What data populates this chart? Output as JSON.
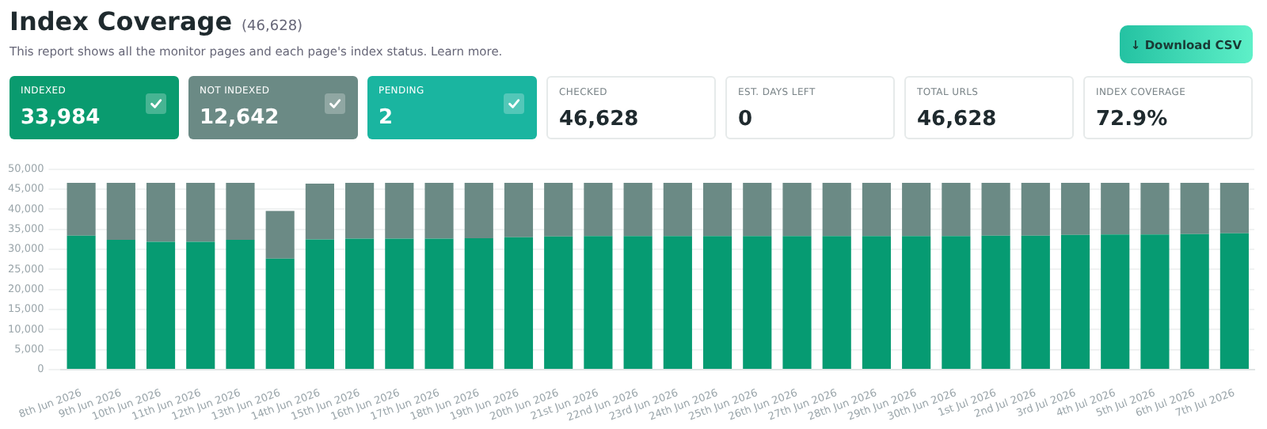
{
  "chart_data": {
    "type": "bar",
    "title": "Index Coverage",
    "subtitle": "This report shows all the monitor pages and each page's index status. Learn more.",
    "annotations": [
      "(46,628)",
      "INDEXED",
      "33,984",
      "NOT INDEXED",
      "12,642",
      "PENDING",
      "2",
      "CHECKED",
      "46,628",
      "EST. DAYS LEFT",
      "0",
      "TOTAL URLS",
      "46,628",
      "INDEX COVERAGE",
      "72.9%",
      "↓ Download CSV"
    ],
    "categories": [
      "8th Jun 2026",
      "9th Jun 2026",
      "10th Jun 2026",
      "11th Jun 2026",
      "12th Jun 2026",
      "13th Jun 2026",
      "14th Jun 2026",
      "15th Jun 2026",
      "16th Jun 2026",
      "17th Jun 2026",
      "18th Jun 2026",
      "19th Jun 2026",
      "20th Jun 2026",
      "21st Jun 2026",
      "22nd Jun 2026",
      "23rd Jun 2026",
      "24th Jun 2026",
      "25th Jun 2026",
      "26th Jun 2026",
      "27th Jun 2026",
      "28th Jun 2026",
      "29th Jun 2026",
      "30th Jun 2026",
      "1st Jul 2026",
      "2nd Jul 2026",
      "3rd Jul 2026",
      "4th Jul 2026",
      "5th Jul 2026",
      "6th Jul 2026",
      "7th Jul 2026"
    ],
    "stacked": true,
    "series": [
      {
        "color": "#069b72",
        "values": [
          33400,
          32400,
          31900,
          31900,
          32400,
          27700,
          32500,
          32700,
          32700,
          32700,
          32800,
          33000,
          33200,
          33300,
          33300,
          33300,
          33300,
          33300,
          33300,
          33300,
          33300,
          33300,
          33300,
          33400,
          33400,
          33600,
          33700,
          33700,
          33800,
          34000
        ]
      },
      {
        "color": "#6b8a85",
        "values": [
          13200,
          14200,
          14700,
          14700,
          14200,
          11900,
          13900,
          13900,
          13900,
          13900,
          13800,
          13600,
          13400,
          13300,
          13300,
          13300,
          13300,
          13300,
          13300,
          13300,
          13300,
          13300,
          13300,
          13200,
          13200,
          13000,
          12900,
          12900,
          12800,
          12600
        ]
      }
    ],
    "ylim": [
      0,
      50000
    ],
    "yticks": [
      0,
      {
        "value": 5000,
        "label": "5,000"
      },
      {
        "value": 10000,
        "label": "10,000"
      },
      {
        "value": 15000,
        "label": "15,000"
      },
      {
        "value": 20000,
        "label": "20,000"
      },
      {
        "value": 25000,
        "label": "25,000"
      },
      {
        "value": 30000,
        "label": "30,000"
      },
      {
        "value": 35000,
        "label": "35,000"
      },
      {
        "value": 40000,
        "label": "40,000"
      },
      {
        "value": 45000,
        "label": "45,000"
      },
      {
        "value": 50000,
        "label": "50,000"
      }
    ],
    "grid": "y",
    "legend": false
  }
}
